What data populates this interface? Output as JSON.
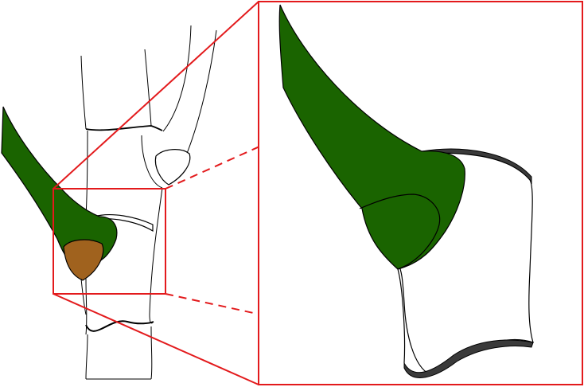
{
  "colors": {
    "background": "#ffffff",
    "outline": "#000000",
    "highlight": "#e31a1c",
    "green_piece": "#1a6400",
    "brown_piece": "#a0621e"
  }
}
